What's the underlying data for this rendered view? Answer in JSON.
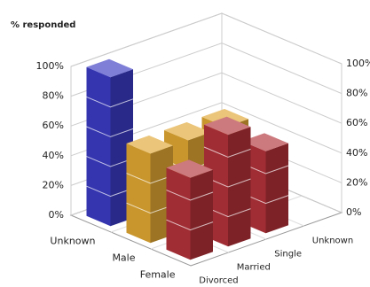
{
  "chart_data": {
    "type": "bar3d",
    "title": "% responded",
    "categories": [
      "Divorced",
      "Married",
      "Single",
      "Unknown"
    ],
    "series": [
      {
        "name": "Unknown",
        "color": "#3b3bc4",
        "values": [
          100,
          null,
          null,
          null
        ]
      },
      {
        "name": "Male",
        "color": "#e0a733",
        "values": [
          60,
          60,
          60,
          null
        ]
      },
      {
        "name": "Female",
        "color": "#b3333a",
        "values": [
          55,
          75,
          55,
          null
        ]
      }
    ],
    "ylim": [
      0,
      100
    ],
    "yticks": [
      {
        "value": 0,
        "label": "0%"
      },
      {
        "value": 20,
        "label": "20%"
      },
      {
        "value": 40,
        "label": "40%"
      },
      {
        "value": 60,
        "label": "60%"
      },
      {
        "value": 80,
        "label": "80%"
      },
      {
        "value": 100,
        "label": "100%"
      }
    ],
    "grid": true
  }
}
